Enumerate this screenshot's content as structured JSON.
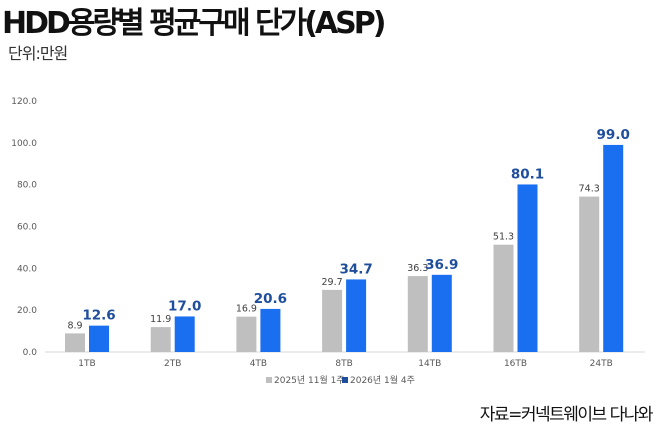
{
  "title": "HDD용량별 평균구매 단가(ASP)",
  "unit": "단위:만원",
  "source": "자료=커넥트웨이브 다나와",
  "chart_data": {
    "type": "bar",
    "title": "HDD용량별 평균구매 단가(ASP)",
    "ylabel": "단위:만원",
    "categories": [
      "1TB",
      "2TB",
      "4TB",
      "8TB",
      "14TB",
      "16TB",
      "24TB"
    ],
    "series": [
      {
        "name": "2025년 11월 1주",
        "color": "#bfbfbf",
        "values": [
          8.9,
          11.9,
          16.9,
          29.7,
          36.3,
          51.3,
          74.3
        ]
      },
      {
        "name": "2026년 1월 4주",
        "color": "#1a6ff0",
        "values": [
          12.6,
          17.0,
          20.6,
          34.7,
          36.9,
          80.1,
          99.0
        ]
      }
    ],
    "ylim": [
      0,
      120
    ],
    "yticks": [
      "0.0",
      "20.0",
      "40.0",
      "60.0",
      "80.0",
      "100.0",
      "120.0"
    ],
    "grid": false,
    "legend": "bottom"
  }
}
